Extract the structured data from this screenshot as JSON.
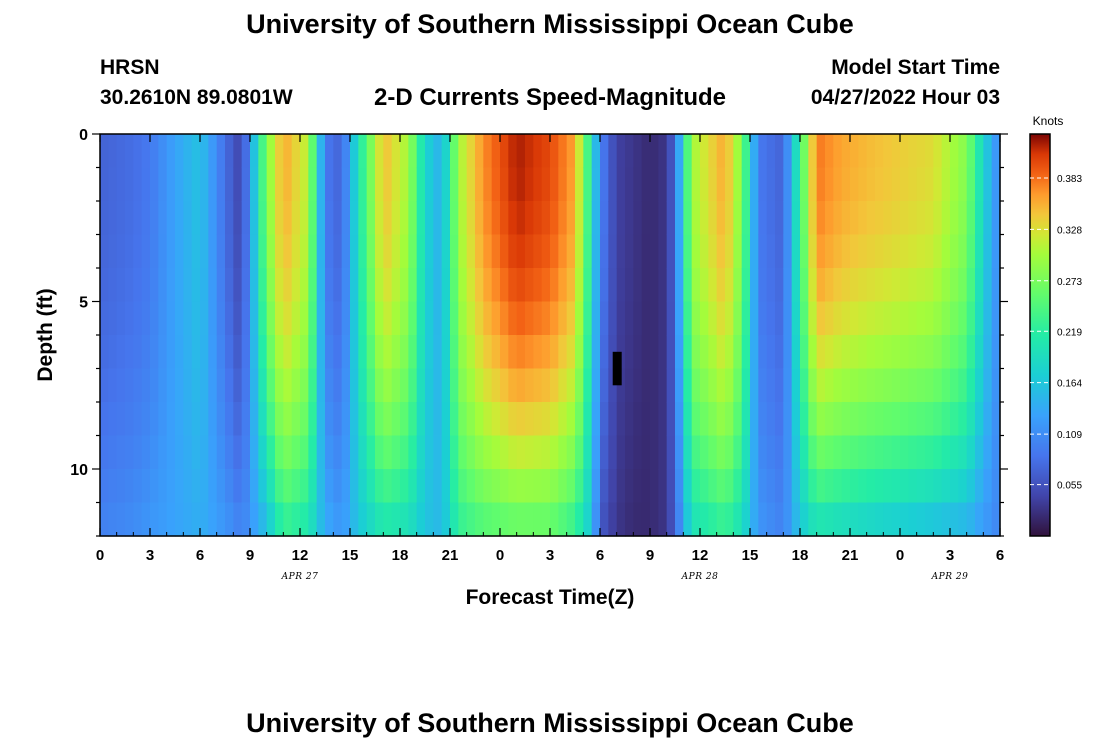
{
  "header": {
    "title": "University of Southern Mississippi Ocean Cube",
    "station": "HRSN",
    "coordinates": "30.2610N  89.0801W",
    "subtitle": "2-D Currents Speed-Magnitude",
    "model_start_label": "Model Start Time",
    "model_start_value": "04/27/2022 Hour 03"
  },
  "footer": {
    "title": "University of Southern Mississippi Ocean Cube"
  },
  "chart_data": {
    "type": "heatmap",
    "title": "2-D Currents Speed-Magnitude",
    "xlabel": "Forecast Time(Z)",
    "ylabel": "Depth (ft)",
    "x_range_hours": [
      0,
      54
    ],
    "y_range_ft": [
      0,
      12
    ],
    "y_ticks": [
      "0",
      "5",
      "10"
    ],
    "x_tick_labels": [
      "0",
      "3",
      "6",
      "9",
      "12",
      "15",
      "18",
      "21",
      "0",
      "3",
      "6",
      "9",
      "12",
      "15",
      "18",
      "21",
      "0",
      "3",
      "6"
    ],
    "date_labels": [
      {
        "text": "APR 27",
        "hour": 12
      },
      {
        "text": "APR 28",
        "hour": 36
      },
      {
        "text": "APR 29",
        "hour": 51
      }
    ],
    "colorbar": {
      "label": "Knots",
      "min": 0,
      "max": 0.43,
      "ticks": [
        "0.383",
        "0.328",
        "0.273",
        "0.219",
        "0.164",
        "0.109",
        "0.055"
      ],
      "tick_values": [
        0.383,
        0.328,
        0.273,
        0.219,
        0.164,
        0.109,
        0.055
      ]
    },
    "columns_per_hour": 2,
    "depth_levels": 12,
    "anchor_hours": [
      0,
      2,
      3,
      4.5,
      6,
      7.5,
      8.5,
      10,
      11,
      12.5,
      13.5,
      14.5,
      15.5,
      17,
      18.5,
      19.5,
      20.5,
      21.5,
      23,
      25,
      27,
      28.5,
      29.5,
      30,
      31,
      32,
      33,
      34,
      34.5,
      35.5,
      37.5,
      38.5,
      39.5,
      41,
      42,
      43,
      44.5,
      46,
      48,
      50,
      52,
      53,
      54
    ],
    "anchor_surface": [
      0.07,
      0.08,
      0.09,
      0.13,
      0.16,
      0.08,
      0.04,
      0.28,
      0.36,
      0.31,
      0.09,
      0.07,
      0.2,
      0.35,
      0.3,
      0.18,
      0.14,
      0.3,
      0.37,
      0.42,
      0.4,
      0.36,
      0.2,
      0.1,
      0.04,
      0.03,
      0.02,
      0.03,
      0.08,
      0.3,
      0.36,
      0.28,
      0.09,
      0.07,
      0.23,
      0.38,
      0.36,
      0.35,
      0.34,
      0.33,
      0.28,
      0.18,
      0.1
    ],
    "anchor_bottom": [
      0.1,
      0.11,
      0.12,
      0.13,
      0.14,
      0.12,
      0.1,
      0.15,
      0.22,
      0.2,
      0.14,
      0.12,
      0.16,
      0.2,
      0.19,
      0.16,
      0.15,
      0.22,
      0.24,
      0.25,
      0.25,
      0.22,
      0.16,
      0.06,
      0.03,
      0.02,
      0.02,
      0.03,
      0.07,
      0.19,
      0.22,
      0.19,
      0.12,
      0.1,
      0.16,
      0.19,
      0.18,
      0.17,
      0.16,
      0.15,
      0.14,
      0.12,
      0.1
    ],
    "missing_cell": {
      "hour": 31,
      "depth_ft_from": 6.5,
      "depth_ft_to": 7.5
    }
  }
}
